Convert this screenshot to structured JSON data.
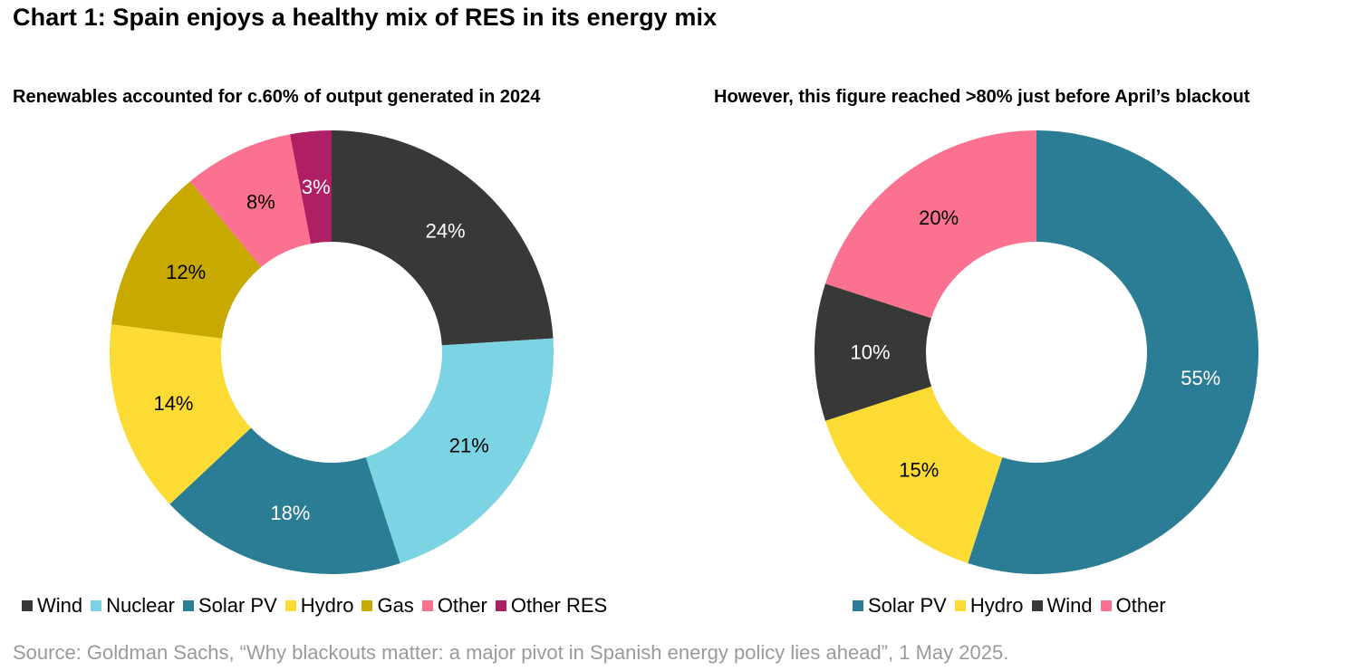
{
  "title": "Chart 1: Spain enjoys a healthy mix of RES in its energy mix",
  "source": "Source: Goldman Sachs, “Why blackouts matter: a major pivot in Spanish energy policy lies ahead”, 1 May 2025.",
  "chart_data": [
    {
      "type": "pie",
      "title": "Renewables accounted for c.60% of output generated in 2024",
      "donut": true,
      "legend_position": "bottom",
      "slices": [
        {
          "name": "Wind",
          "value": 24,
          "label": "24%",
          "color": "#383936",
          "label_color": "#ffffff"
        },
        {
          "name": "Nuclear",
          "value": 21,
          "label": "21%",
          "color": "#7bd3e4",
          "label_color": "#000000"
        },
        {
          "name": "Solar PV",
          "value": 18,
          "label": "18%",
          "color": "#2a7d94",
          "label_color": "#ffffff"
        },
        {
          "name": "Hydro",
          "value": 14,
          "label": "14%",
          "color": "#fddb35",
          "label_color": "#000000"
        },
        {
          "name": "Gas",
          "value": 12,
          "label": "12%",
          "color": "#c8a900",
          "label_color": "#000000"
        },
        {
          "name": "Other",
          "value": 8,
          "label": "8%",
          "color": "#fb7190",
          "label_color": "#000000"
        },
        {
          "name": "Other RES",
          "value": 3,
          "label": "3%",
          "color": "#ae2063",
          "label_color": "#ffffff"
        }
      ]
    },
    {
      "type": "pie",
      "title": "However, this figure reached >80% just before April’s blackout",
      "donut": true,
      "legend_position": "bottom",
      "slices": [
        {
          "name": "Solar PV",
          "value": 55,
          "label": "55%",
          "color": "#2a7d94",
          "label_color": "#ffffff"
        },
        {
          "name": "Hydro",
          "value": 15,
          "label": "15%",
          "color": "#fddb35",
          "label_color": "#000000"
        },
        {
          "name": "Wind",
          "value": 10,
          "label": "10%",
          "color": "#383936",
          "label_color": "#ffffff"
        },
        {
          "name": "Other",
          "value": 20,
          "label": "20%",
          "color": "#fb7190",
          "label_color": "#000000"
        }
      ]
    }
  ]
}
